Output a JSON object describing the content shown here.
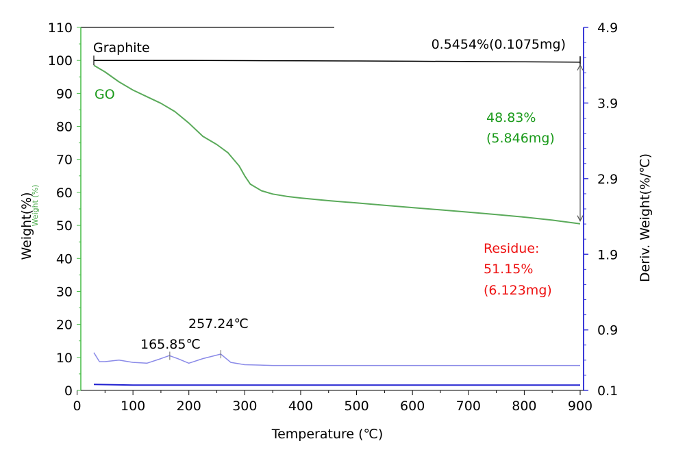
{
  "chart_data": {
    "type": "line",
    "xlabel": "Temperature (℃)",
    "ylabel": "Weight(%)",
    "ylabel_overlay": "Weight (%)",
    "y2label": "Deriv. Weight(%/℃)",
    "xlim": [
      0,
      910
    ],
    "ylim": [
      0,
      110
    ],
    "y2lim": [
      0.1,
      4.9
    ],
    "x_ticks": [
      "0",
      "100",
      "200",
      "300",
      "400",
      "500",
      "600",
      "700",
      "800",
      "900"
    ],
    "y_ticks": [
      "0",
      "10",
      "20",
      "30",
      "40",
      "50",
      "60",
      "70",
      "80",
      "90",
      "100",
      "110"
    ],
    "y2_ticks": [
      "0.1",
      "0.9",
      "1.9",
      "2.9",
      "3.9",
      "4.9"
    ],
    "series": [
      {
        "name": "Graphite",
        "color": "#000000",
        "axis": "left",
        "x": [
          30,
          100,
          200,
          300,
          400,
          500,
          600,
          700,
          800,
          900
        ],
        "y": [
          100,
          99.99,
          99.97,
          99.93,
          99.88,
          99.82,
          99.74,
          99.66,
          99.57,
          99.45
        ]
      },
      {
        "name": "GO",
        "color": "#5aaa5a",
        "axis": "left",
        "x": [
          30,
          50,
          75,
          100,
          125,
          150,
          175,
          200,
          225,
          250,
          270,
          290,
          300,
          310,
          330,
          350,
          375,
          400,
          450,
          500,
          550,
          600,
          650,
          700,
          750,
          800,
          850,
          900
        ],
        "y": [
          98.5,
          96.5,
          93.5,
          91,
          89,
          87,
          84.5,
          81,
          77,
          74.5,
          72,
          68,
          65,
          62.5,
          60.5,
          59.5,
          58.8,
          58.3,
          57.5,
          56.8,
          56.1,
          55.4,
          54.7,
          54.0,
          53.3,
          52.5,
          51.6,
          50.5
        ]
      },
      {
        "name": "GO-deriv",
        "color": "#8a8ae8",
        "axis": "right",
        "x": [
          30,
          40,
          50,
          75,
          100,
          125,
          150,
          165,
          180,
          200,
          225,
          257,
          275,
          300,
          350,
          400,
          500,
          600,
          700,
          800,
          900
        ],
        "y": [
          0.6,
          0.48,
          0.48,
          0.5,
          0.47,
          0.46,
          0.52,
          0.56,
          0.52,
          0.46,
          0.52,
          0.58,
          0.47,
          0.44,
          0.43,
          0.43,
          0.43,
          0.43,
          0.43,
          0.43,
          0.43
        ]
      },
      {
        "name": "Graphite-deriv",
        "color": "#2020d0",
        "axis": "right",
        "x": [
          30,
          100,
          200,
          300,
          400,
          500,
          600,
          700,
          800,
          900
        ],
        "y": [
          0.18,
          0.17,
          0.17,
          0.17,
          0.17,
          0.17,
          0.17,
          0.17,
          0.17,
          0.17
        ]
      }
    ],
    "annotations": {
      "graphite_label": "Graphite",
      "go_label": "GO",
      "graphite_loss": "0.5454%(0.1075mg)",
      "go_loss_pct": "48.83%",
      "go_loss_mg": "(5.846mg)",
      "residue_title": "Residue:",
      "residue_pct": "51.15%",
      "residue_mg": "(6.123mg)",
      "peak1": "165.85℃",
      "peak1_x": 165.85,
      "peak2": "257.24℃",
      "peak2_x": 257.24
    },
    "colors": {
      "green": "#1a9a1a",
      "red": "#ee1111",
      "right_axis": "#3a3ad8",
      "left_axis": "#44bb44"
    }
  }
}
